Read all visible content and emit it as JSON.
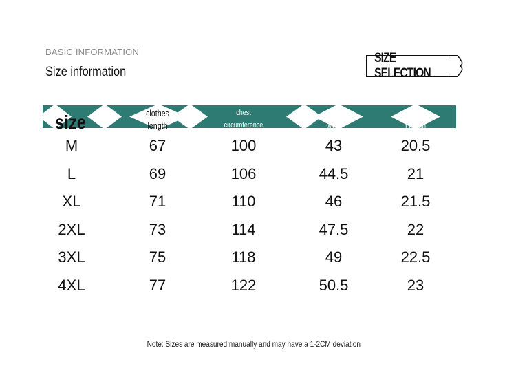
{
  "header": {
    "eyebrow": "BASIC INFORMATION",
    "title": "Size information",
    "badge": "SIZE SELECTION"
  },
  "table": {
    "band_color": "#2e7b73",
    "columns": [
      {
        "line1": "size",
        "line2": ""
      },
      {
        "line1": "clothes",
        "line2": "length"
      },
      {
        "line1": "chest",
        "line2": "circumference"
      },
      {
        "line1": "shoulder",
        "line2": "width"
      },
      {
        "line1": "Sleeve",
        "line2": "Length"
      }
    ],
    "rows": [
      [
        "M",
        "67",
        "100",
        "43",
        "20.5"
      ],
      [
        "L",
        "69",
        "106",
        "44.5",
        "21"
      ],
      [
        "XL",
        "71",
        "110",
        "46",
        "21.5"
      ],
      [
        "2XL",
        "73",
        "114",
        "47.5",
        "22"
      ],
      [
        "3XL",
        "75",
        "118",
        "49",
        "22.5"
      ],
      [
        "4XL",
        "77",
        "122",
        "50.5",
        "23"
      ]
    ]
  },
  "note": "Note: Sizes are measured manually and may have a 1-2CM deviation"
}
